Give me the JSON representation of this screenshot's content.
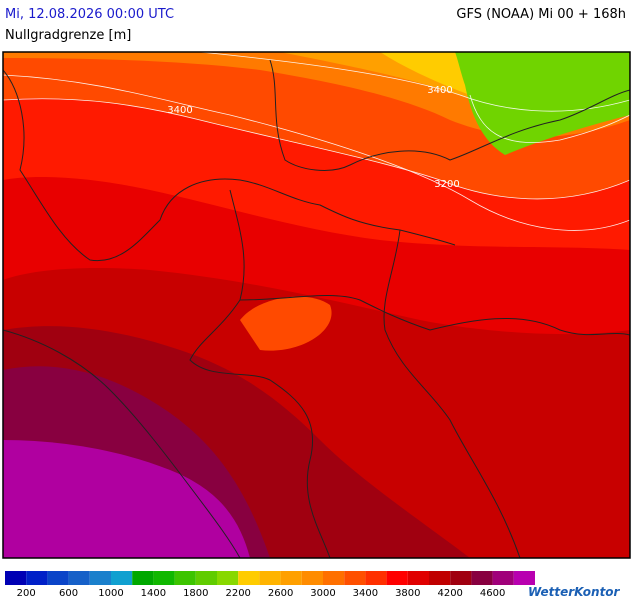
{
  "header": {
    "date": "Mi, 12.08.2026 00:00 UTC",
    "model": "GFS (NOAA) Mi 00 + 168h",
    "parameter": "Nullgradgrenze [m]"
  },
  "map": {
    "contour_labels": [
      "3400",
      "3400",
      "3200"
    ]
  },
  "legend": {
    "colors": [
      "#0000b4",
      "#0020c8",
      "#0a44c8",
      "#1660c8",
      "#1a80cc",
      "#10a0d0",
      "#00a800",
      "#10b800",
      "#3cc400",
      "#60cc00",
      "#88d800",
      "#ffcc00",
      "#ffb400",
      "#ffa000",
      "#ff8c00",
      "#ff7000",
      "#ff5000",
      "#ff3000",
      "#ff0000",
      "#e00000",
      "#c00000",
      "#a00010",
      "#880040",
      "#a0007a",
      "#b800b0"
    ],
    "labels": [
      "200",
      "600",
      "1000",
      "1400",
      "1800",
      "2200",
      "2600",
      "3000",
      "3400",
      "3800",
      "4200",
      "4600"
    ]
  },
  "logo": "WetterKontor"
}
